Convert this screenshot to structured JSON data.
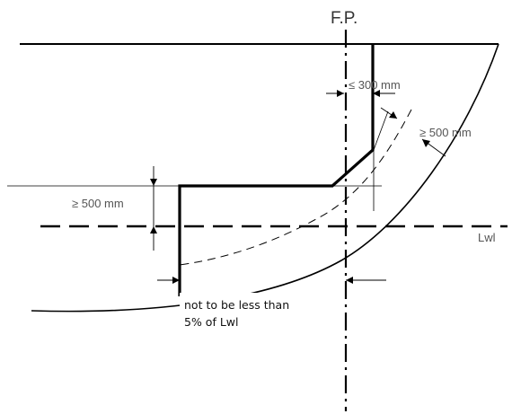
{
  "labels": {
    "fp": "F.P.",
    "collision_bulkhead_offset": "≤ 300 mm",
    "shell_clearance": "≥ 500 mm",
    "step_height": "≥ 500 mm",
    "waterline": "Lwl",
    "note_line1": "not to be less than",
    "note_line2": "5% of Lwl"
  }
}
